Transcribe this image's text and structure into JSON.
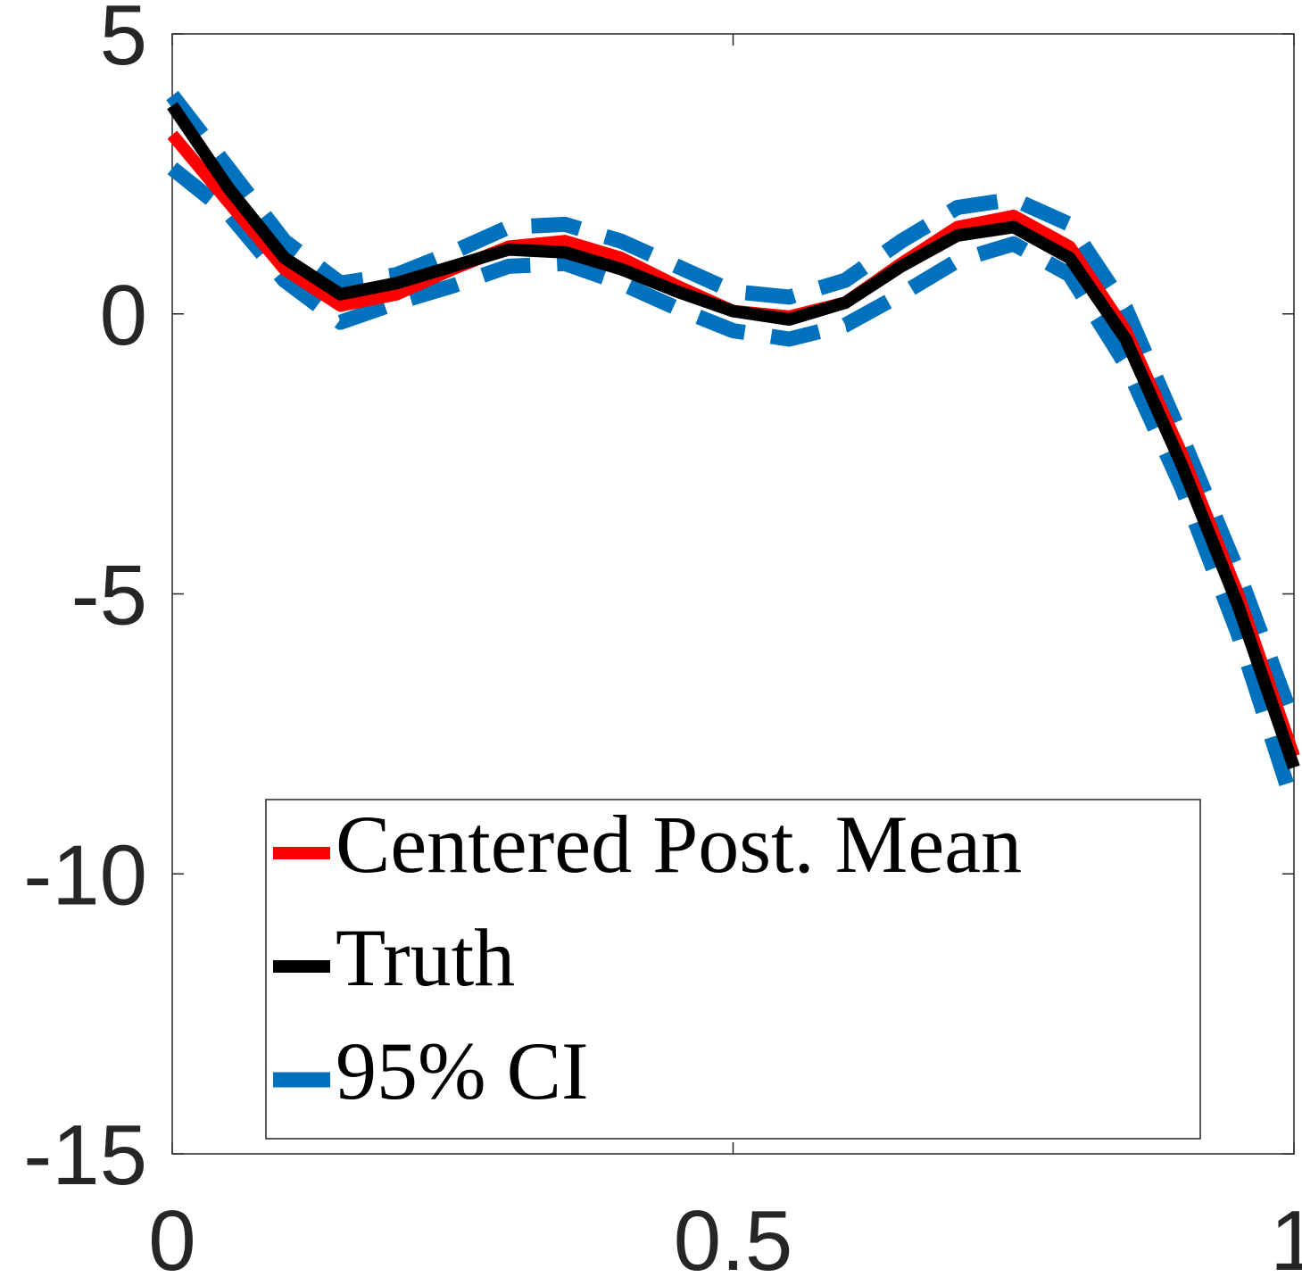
{
  "chart_data": {
    "type": "line",
    "x": [
      0,
      0.05,
      0.1,
      0.15,
      0.2,
      0.25,
      0.3,
      0.35,
      0.4,
      0.45,
      0.5,
      0.55,
      0.6,
      0.65,
      0.7,
      0.75,
      0.8,
      0.85,
      0.9,
      0.95,
      1
    ],
    "series": [
      {
        "name": "Centered Post. Mean",
        "color": "#ff0000",
        "values": [
          3.2,
          2.0,
          0.8,
          0.15,
          0.35,
          0.8,
          1.2,
          1.3,
          1.0,
          0.5,
          0.05,
          -0.05,
          0.2,
          0.9,
          1.55,
          1.75,
          1.2,
          -0.3,
          -2.5,
          -5.0,
          -7.9
        ]
      },
      {
        "name": "Truth",
        "color": "#000000",
        "values": [
          3.72,
          2.25,
          1.0,
          0.35,
          0.55,
          0.85,
          1.15,
          1.1,
          0.8,
          0.4,
          0.05,
          -0.1,
          0.2,
          0.85,
          1.4,
          1.55,
          1.0,
          -0.45,
          -2.7,
          -5.2,
          -8.1
        ]
      },
      {
        "name": "95% CI",
        "color": "#0072bd",
        "dashed": true,
        "values": [
          3.9,
          2.6,
          1.3,
          0.55,
          0.7,
          1.1,
          1.55,
          1.6,
          1.3,
          0.85,
          0.4,
          0.3,
          0.6,
          1.3,
          1.9,
          2.05,
          1.6,
          0.1,
          -2.2,
          -4.6,
          -7.3
        ],
        "lower": [
          2.6,
          1.8,
          0.6,
          -0.15,
          0.2,
          0.5,
          0.85,
          0.9,
          0.55,
          0.1,
          -0.3,
          -0.45,
          -0.2,
          0.35,
          0.95,
          1.25,
          0.7,
          -0.9,
          -3.1,
          -5.7,
          -8.8
        ]
      }
    ],
    "xlim": [
      0,
      1
    ],
    "xticks": [
      0,
      0.5,
      1
    ],
    "ylim": [
      -15,
      5
    ],
    "yticks": [
      -15,
      -10,
      -5,
      0,
      5
    ],
    "grid": false
  }
}
